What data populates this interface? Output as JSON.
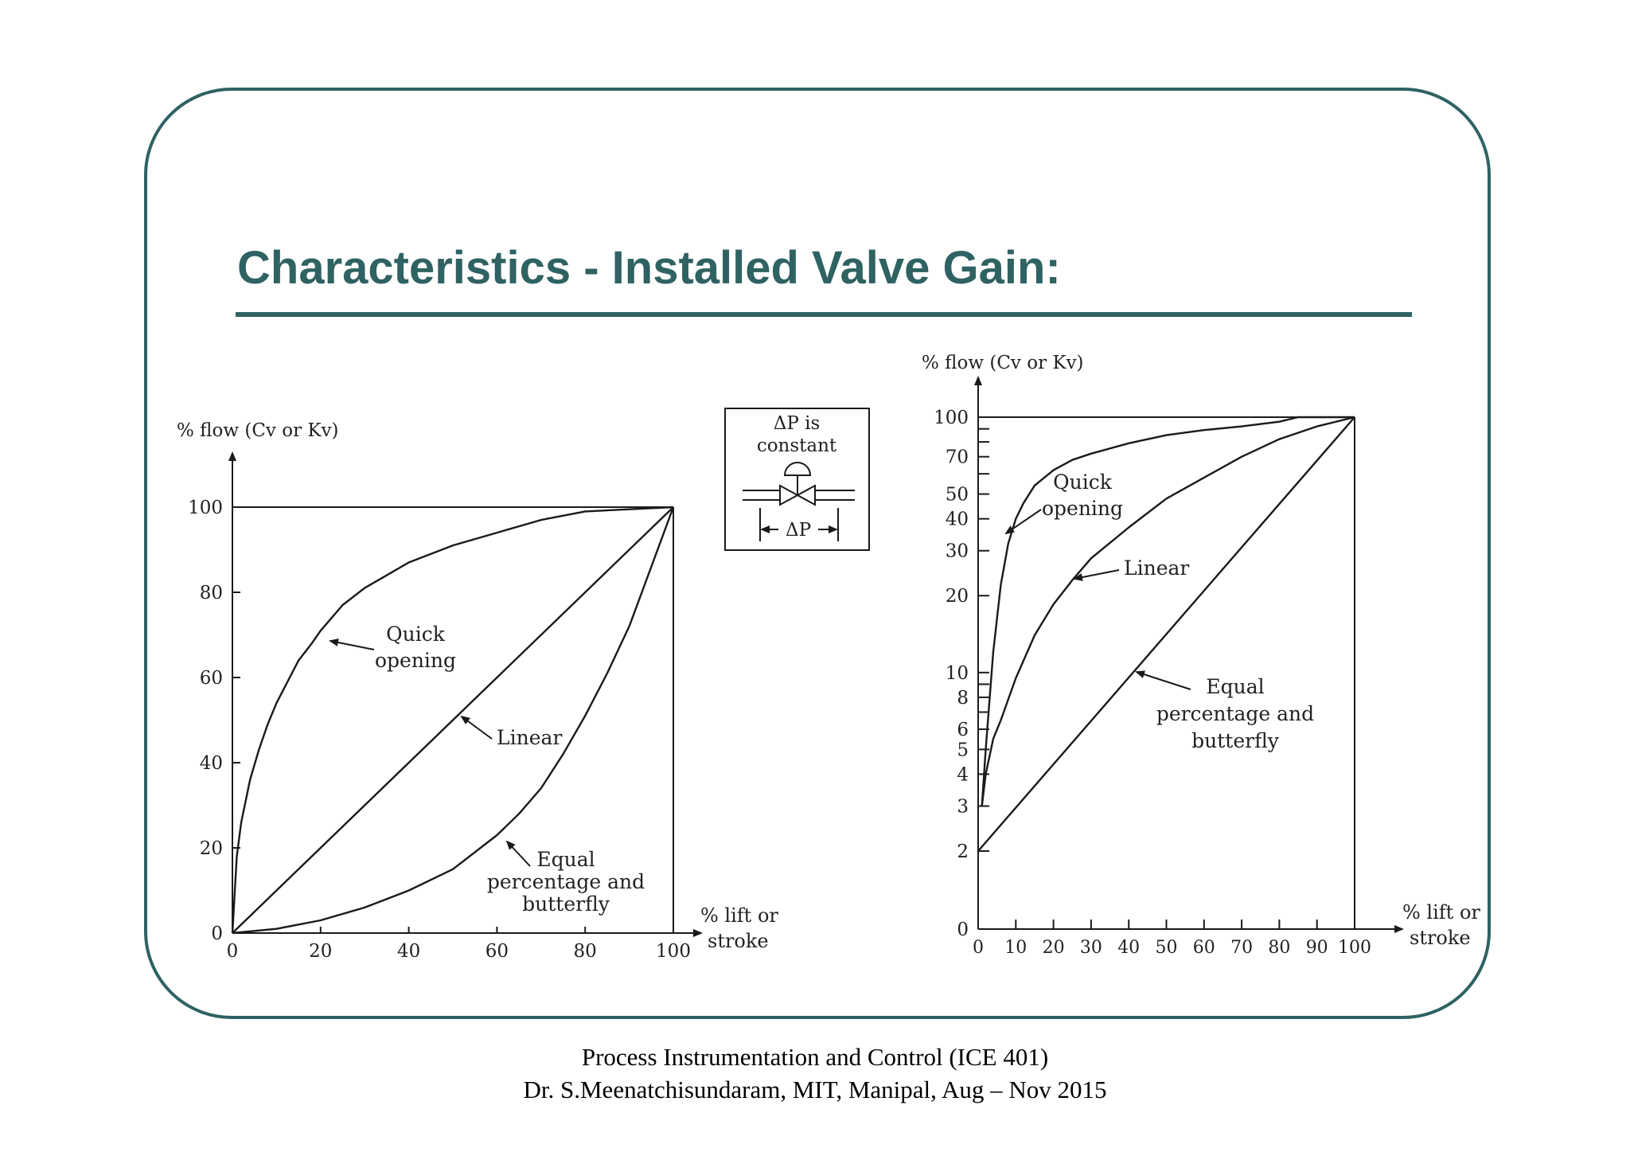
{
  "slide": {
    "title": "Characteristics - Installed Valve Gain:",
    "footer_line1": "Process Instrumentation and Control (ICE 401)",
    "footer_line2": "Dr. S.Meenatchisundaram, MIT, Manipal, Aug – Nov 2015",
    "accent_color": "#2f6262"
  },
  "inset": {
    "line1": "ΔP is",
    "line2": "constant",
    "dp_label": "ΔP",
    "icon": "control-valve-icon"
  },
  "chart_data": [
    {
      "type": "line",
      "title": "",
      "ylabel": "% flow (Cv or Kv)",
      "xlabel_line1": "% lift or",
      "xlabel_line2": "stroke",
      "xlim": [
        0,
        100
      ],
      "ylim": [
        0,
        100
      ],
      "yscale": "linear",
      "x_ticks": [
        0,
        20,
        40,
        60,
        80,
        100
      ],
      "y_ticks": [
        0,
        20,
        40,
        60,
        80,
        100
      ],
      "grid": false,
      "series": [
        {
          "name": "Quick opening",
          "label_lines": [
            "Quick",
            "opening"
          ],
          "x": [
            0,
            1,
            2,
            4,
            6,
            8,
            10,
            12,
            15,
            18,
            20,
            25,
            30,
            35,
            40,
            50,
            60,
            70,
            80,
            90,
            100
          ],
          "y": [
            0,
            18,
            26,
            36,
            43,
            49,
            54,
            58,
            64,
            68,
            71,
            77,
            81,
            84,
            87,
            91,
            94,
            97,
            99,
            99.5,
            100
          ]
        },
        {
          "name": "Linear",
          "label_lines": [
            "Linear"
          ],
          "x": [
            0,
            100
          ],
          "y": [
            0,
            100
          ]
        },
        {
          "name": "Equal percentage and butterfly",
          "label_lines": [
            "Equal",
            "percentage and",
            "butterfly"
          ],
          "x": [
            0,
            10,
            20,
            30,
            40,
            50,
            60,
            65,
            70,
            75,
            80,
            85,
            90,
            95,
            100
          ],
          "y": [
            0,
            1,
            3,
            6,
            10,
            15,
            23,
            28,
            34,
            42,
            51,
            61,
            72,
            86,
            100
          ]
        }
      ]
    },
    {
      "type": "line",
      "title": "",
      "ylabel": "% flow (Cv or Kv)",
      "xlabel_line1": "% lift or",
      "xlabel_line2": "stroke",
      "xlim": [
        0,
        100
      ],
      "yscale": "log",
      "x_ticks": [
        0,
        10,
        20,
        30,
        40,
        50,
        60,
        70,
        80,
        90,
        100
      ],
      "y_tick_labels": [
        0,
        2,
        3,
        4,
        5,
        6,
        8,
        10,
        20,
        30,
        40,
        50,
        70,
        100
      ],
      "y_minor_ticks": [
        7,
        9,
        60,
        80,
        90
      ],
      "grid": false,
      "series": [
        {
          "name": "Quick opening",
          "label_lines": [
            "Quick",
            "opening"
          ],
          "x": [
            1,
            2,
            4,
            6,
            8,
            10,
            12,
            15,
            20,
            25,
            30,
            40,
            50,
            60,
            70,
            80,
            85,
            100
          ],
          "y": [
            3,
            5,
            12,
            22,
            32,
            40,
            46,
            54,
            62,
            68,
            72,
            79,
            85,
            89,
            92,
            96,
            100,
            100
          ]
        },
        {
          "name": "Linear",
          "label_lines": [
            "Linear"
          ],
          "x": [
            1,
            2,
            4,
            6,
            10,
            15,
            20,
            25,
            30,
            40,
            50,
            60,
            70,
            80,
            90,
            100
          ],
          "y": [
            3,
            4,
            5.5,
            6.5,
            9.5,
            14,
            18.5,
            23,
            28,
            37,
            48,
            58,
            70,
            82,
            92,
            100
          ]
        },
        {
          "name": "Equal percentage and butterfly",
          "label_lines": [
            "Equal",
            "percentage and",
            "butterfly"
          ],
          "x": [
            0,
            100
          ],
          "y": [
            2,
            100
          ]
        }
      ]
    }
  ]
}
